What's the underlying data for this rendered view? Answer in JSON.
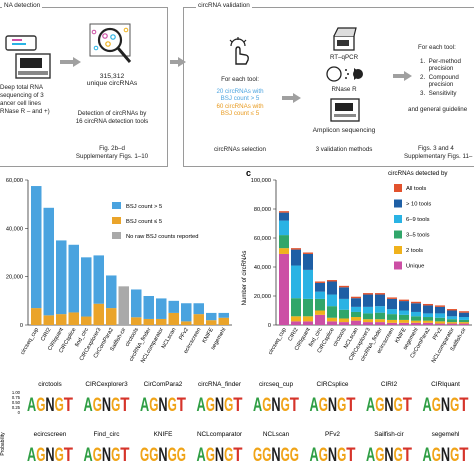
{
  "workflow": {
    "detection_header": "NA detection",
    "validation_header": "circRNA validation",
    "step1_lines": [
      "Deep total RNA",
      "sequencing of 3",
      "ancer cell lines",
      "RNase R – and +)"
    ],
    "unique_count": "315,312",
    "unique_label": "unique circRNAs",
    "detection_caption": [
      "Detection of circRNAs by",
      "16 circRNA detection tools"
    ],
    "detection_ref": [
      "Fig. 2b–d",
      "Supplementary Figs. 1–10"
    ],
    "for_each_tool": "For each tool:",
    "selection_line1": "20 circRNAs with",
    "selection_line2": "BSJ count > 5",
    "selection_line3": "60 circRNAs with",
    "selection_line4": "BSJ count ≤ 5",
    "selection_label": "circRNAs selection",
    "rt_qpcr": "RT–qPCR",
    "rnase_r": "RNase R",
    "amplicon": "Amplicon sequencing",
    "validation_methods": "3 validation methods",
    "metrics_header": "For each tool:",
    "metrics": [
      "1.  Per-method",
      "     precision",
      "2.  Compound",
      "     precision",
      "3.  Sensitivity"
    ],
    "guidelines": "and general guideline",
    "metrics_ref": [
      "Figs. 3 and 4",
      "Supplementary Figs. 11–"
    ]
  },
  "chart_b": {
    "type": "bar",
    "ytick_labels": [
      "60,000",
      "40,000",
      "20,000",
      "0"
    ],
    "legend": [
      "BSJ count > 5",
      "BSJ count ≤ 5",
      "No raw BSJ counts reported"
    ],
    "colors": {
      "high": "#4aa3df",
      "low": "#eaa42a",
      "none": "#a9a9a9"
    },
    "categories": [
      "circseq_cup",
      "CIRI2",
      "CIRIquant",
      "CIRCsplice",
      "find_circ",
      "CIRCexplorer3",
      "CirComPara2",
      "Sailfish-cir",
      "circtools",
      "circRNA_finder",
      "NCLcomparator",
      "NCLscan",
      "PFv2",
      "ecircscreen",
      "KNIFE",
      "segemehl"
    ]
  },
  "chart_c": {
    "type": "bar",
    "panel_letter": "c",
    "ylabel": "Number of circRNAs",
    "ytick_labels": [
      "100,000",
      "80,000",
      "60,000",
      "40,000",
      "20,000",
      "0"
    ],
    "legend_title": "circRNAs detected by",
    "legend": [
      "All tools",
      "> 10 tools",
      "6–9 tools",
      "3–5 tools",
      "2 tools",
      "Unique"
    ],
    "colors": [
      "#e2522d",
      "#1e5fa5",
      "#2ab3e4",
      "#30a66a",
      "#f0b21c",
      "#cc4fa5"
    ],
    "categories": [
      "circseq_cup",
      "CIRI2",
      "CIRIquant",
      "find_circ",
      "CIRCsplice",
      "circtools",
      "NCLscan",
      "CIRCexplorer3",
      "circRNA_finder",
      "ecircscreen",
      "KNIFE",
      "segemehl",
      "CirComPara2",
      "PFv2",
      "NCLcomparator",
      "Sailfish-cir"
    ]
  },
  "logos": {
    "row1": [
      "circtools",
      "CIRCexplorer3",
      "CirComPara2",
      "circRNA_finder",
      "circseq_cup",
      "CIRCsplice",
      "CIRI2",
      "CIRIquant"
    ],
    "row2": [
      "ecircscreen",
      "Find_circ",
      "KNIFE",
      "NCLcomparator",
      "NCLscan",
      "PFv2",
      "Sailfish-cir",
      "segemehl"
    ],
    "row1_seq": [
      "AGNGT",
      "AGNGT",
      "AGNGT",
      "AGNGT",
      "AGNGT",
      "AGNGT",
      "AGNGT",
      "AGNGT"
    ],
    "row2_seq": [
      "AGNGT",
      "AGNGT",
      "GGNGG",
      "AGNGT",
      "GGNGG",
      "AGNGT",
      "AGNGT",
      "AGNGT"
    ],
    "ytick_labels": [
      "1.00",
      "0.75",
      "0.50",
      "0.25",
      "0"
    ],
    "ylabel": "Probability",
    "base_colors": {
      "A": "#2f9e44",
      "G": "#f0a418",
      "C": "#2f6fc0",
      "T": "#d6342a",
      "N": "#1f1f1f"
    }
  }
}
